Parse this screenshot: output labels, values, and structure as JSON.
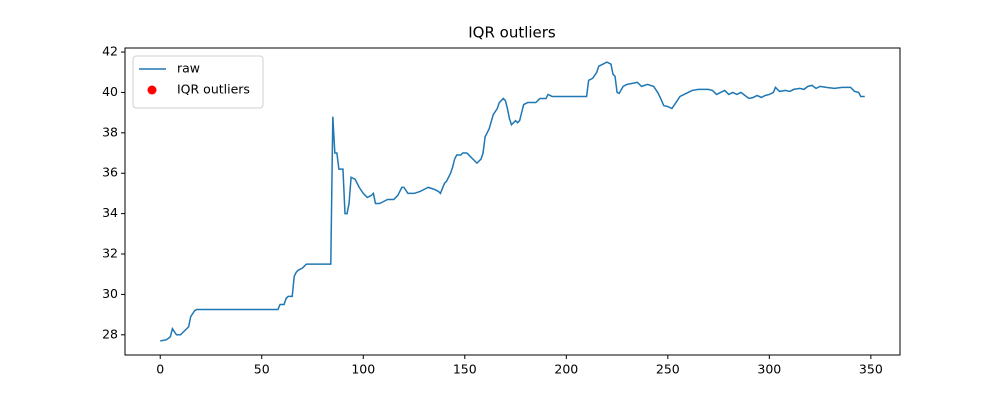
{
  "chart_data": {
    "type": "line",
    "title": "IQR outliers",
    "series": [
      {
        "name": "raw",
        "color": "#1f77b4",
        "type": "line",
        "x": [
          0,
          3,
          5,
          6,
          8,
          10,
          12,
          14,
          15,
          17,
          18,
          58,
          59,
          61,
          62,
          63,
          65,
          66,
          67,
          68,
          70,
          72,
          84,
          85,
          86,
          87,
          88,
          90,
          91,
          92,
          93,
          94,
          96,
          98,
          100,
          102,
          104,
          105,
          106,
          108,
          110,
          112,
          115,
          117,
          119,
          120,
          122,
          125,
          128,
          130,
          132,
          135,
          137,
          138,
          140,
          141,
          143,
          144,
          145,
          146,
          148,
          149,
          151,
          153,
          155,
          156,
          158,
          159,
          160,
          162,
          164,
          166,
          167,
          169,
          170,
          171,
          172,
          173,
          175,
          176,
          177,
          179,
          181,
          185,
          187,
          190,
          191,
          193,
          210,
          211,
          213,
          215,
          216,
          218,
          220,
          222,
          223,
          224,
          225,
          226,
          228,
          230,
          235,
          237,
          240,
          243,
          245,
          246,
          248,
          250,
          252,
          254,
          256,
          258,
          260,
          262,
          265,
          270,
          272,
          274,
          276,
          278,
          280,
          282,
          284,
          286,
          288,
          290,
          292,
          294,
          296,
          298,
          300,
          302,
          303,
          305,
          308,
          310,
          312,
          315,
          317,
          319,
          321,
          323,
          325,
          328,
          332,
          336,
          340,
          342,
          344,
          345,
          347
        ],
        "values": [
          27.7,
          27.75,
          27.9,
          28.3,
          28.0,
          28.0,
          28.2,
          28.4,
          28.9,
          29.2,
          29.25,
          29.25,
          29.5,
          29.5,
          29.8,
          29.9,
          29.9,
          30.9,
          31.1,
          31.2,
          31.3,
          31.5,
          31.5,
          38.8,
          37.0,
          37.0,
          36.2,
          36.2,
          34.0,
          34.0,
          34.5,
          35.8,
          35.7,
          35.3,
          35.0,
          34.8,
          34.9,
          35.0,
          34.5,
          34.5,
          34.6,
          34.7,
          34.7,
          34.9,
          35.3,
          35.3,
          35.0,
          35.0,
          35.1,
          35.2,
          35.3,
          35.2,
          35.1,
          35.0,
          35.5,
          35.6,
          36.0,
          36.3,
          36.7,
          36.9,
          36.9,
          37.0,
          37.0,
          36.8,
          36.6,
          36.5,
          36.7,
          37.0,
          37.8,
          38.2,
          38.9,
          39.2,
          39.5,
          39.7,
          39.6,
          39.2,
          38.7,
          38.4,
          38.6,
          38.5,
          38.6,
          39.4,
          39.5,
          39.5,
          39.7,
          39.7,
          39.9,
          39.8,
          39.8,
          40.6,
          40.7,
          41.0,
          41.3,
          41.4,
          41.5,
          41.4,
          40.9,
          40.8,
          40.0,
          39.95,
          40.3,
          40.4,
          40.5,
          40.3,
          40.4,
          40.3,
          40.0,
          39.8,
          39.35,
          39.3,
          39.2,
          39.5,
          39.8,
          39.9,
          40.0,
          40.1,
          40.15,
          40.15,
          40.1,
          39.9,
          40.0,
          40.1,
          39.9,
          40.0,
          39.9,
          40.0,
          39.85,
          39.7,
          39.75,
          39.85,
          39.75,
          39.85,
          39.9,
          40.0,
          40.25,
          40.05,
          40.1,
          40.05,
          40.15,
          40.2,
          40.15,
          40.3,
          40.35,
          40.2,
          40.3,
          40.25,
          40.2,
          40.25,
          40.25,
          40.05,
          40.0,
          39.8,
          39.8
        ]
      },
      {
        "name": "IQR outliers",
        "color": "#ff0000",
        "type": "scatter",
        "x": [],
        "values": []
      }
    ],
    "xlim": [
      -17.35,
      364.35
    ],
    "xticks": [
      0,
      50,
      100,
      150,
      200,
      250,
      300,
      350
    ],
    "ylim": [
      27.0,
      42.2
    ],
    "yticks": [
      28,
      30,
      32,
      34,
      36,
      38,
      40,
      42
    ],
    "legend": "upper left"
  }
}
